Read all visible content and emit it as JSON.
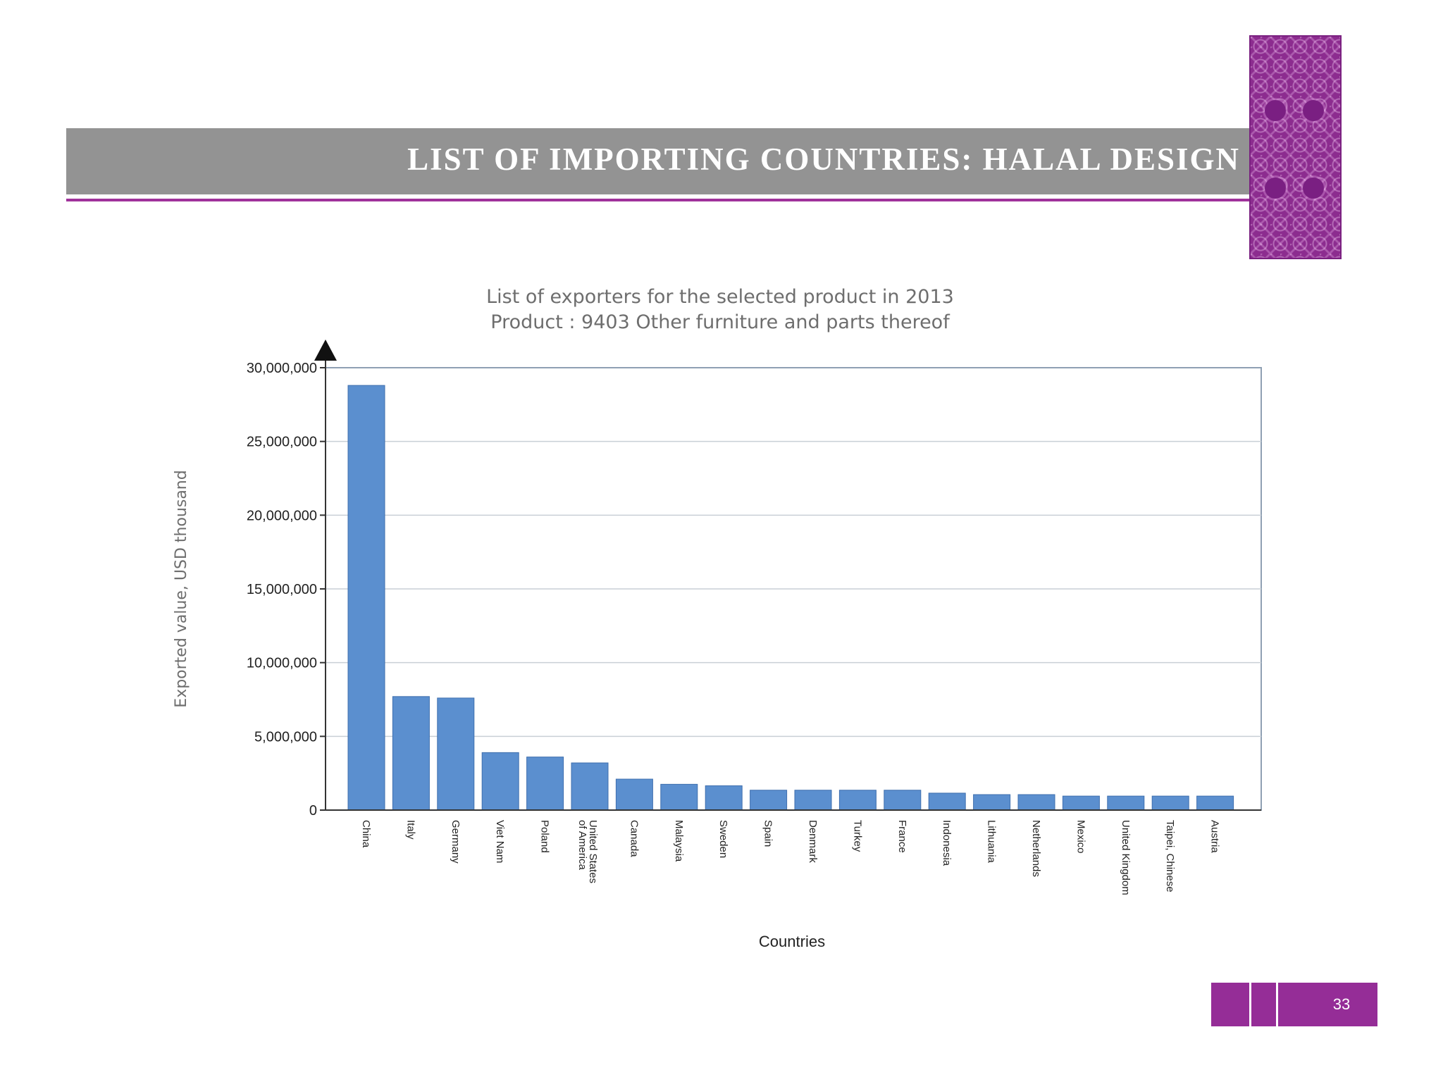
{
  "slide": {
    "title": "LIST OF IMPORTING COUNTRIES: HALAL DESIGN",
    "page_number": "33",
    "accent_color": "#a0329b",
    "title_bar_color": "#939393",
    "pattern_color": "#8c2c8f"
  },
  "chart_data": {
    "type": "bar",
    "title": "List of exporters for the selected product in 2013",
    "subtitle": "Product : 9403 Other furniture and parts thereof",
    "xlabel": "Countries",
    "ylabel": "Exported value, USD thousand",
    "ylim": [
      0,
      30000000
    ],
    "yticks": [
      0,
      5000000,
      10000000,
      15000000,
      20000000,
      25000000,
      30000000
    ],
    "ytick_labels": [
      "0",
      "5,000,000",
      "10,000,000",
      "15,000,000",
      "20,000,000",
      "25,000,000",
      "30,000,000"
    ],
    "grid": true,
    "bar_color": "#5b8fcf",
    "categories": [
      "China",
      "Italy",
      "Germany",
      "Viet Nam",
      "Poland",
      "United States of America",
      "Canada",
      "Malaysia",
      "Sweden",
      "Spain",
      "Denmark",
      "Turkey",
      "France",
      "Indonesia",
      "Lithuania",
      "Netherlands",
      "Mexico",
      "United Kingdom",
      "Taipei, Chinese",
      "Austria"
    ],
    "values": [
      28800000,
      7700000,
      7600000,
      3900000,
      3600000,
      3200000,
      2100000,
      1750000,
      1650000,
      1350000,
      1350000,
      1350000,
      1350000,
      1150000,
      1050000,
      1050000,
      950000,
      950000,
      950000,
      950000
    ]
  }
}
